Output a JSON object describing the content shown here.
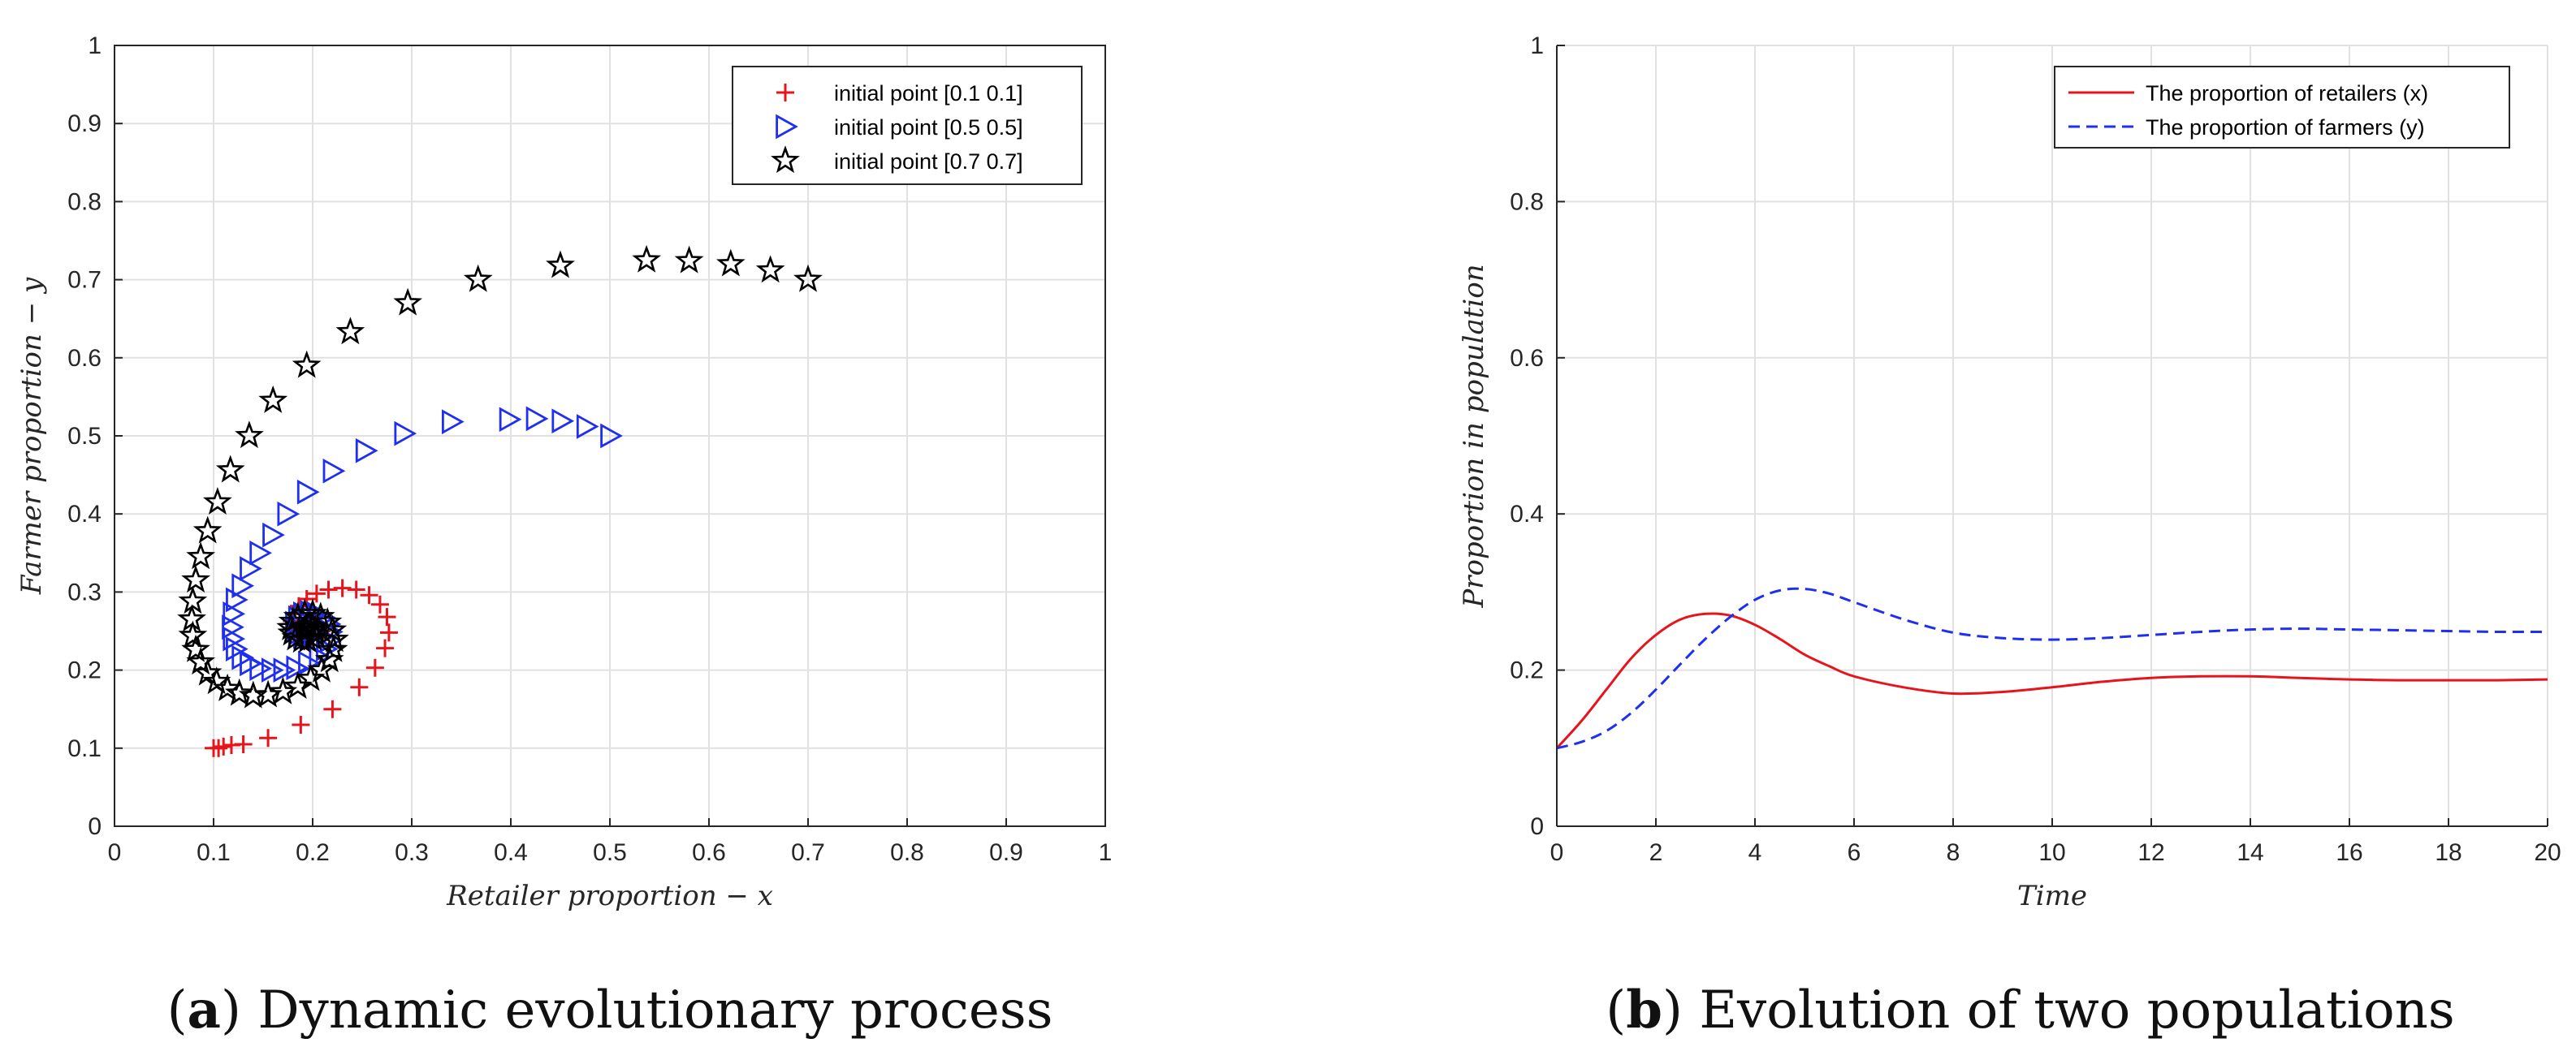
{
  "chart_data": [
    {
      "type": "scatter",
      "panel": "a",
      "caption": {
        "letter": "a",
        "text": "Dynamic evolutionary process"
      },
      "xlabel": "Retailer proportion − x",
      "ylabel": "Farmer proportion − y",
      "xlim": [
        0,
        1
      ],
      "ylim": [
        0,
        1
      ],
      "xticks": [
        "0",
        "0.1",
        "0.2",
        "0.3",
        "0.4",
        "0.5",
        "0.6",
        "0.7",
        "0.8",
        "0.9",
        "1"
      ],
      "yticks": [
        "0",
        "0.1",
        "0.2",
        "0.3",
        "0.4",
        "0.5",
        "0.6",
        "0.7",
        "0.8",
        "0.9",
        "1"
      ],
      "grid": true,
      "legend_position": "top-right",
      "series": [
        {
          "name": "initial point [0.1 0.1]",
          "marker": "plus",
          "color": "#e8141c",
          "points": [
            [
              0.1,
              0.1
            ],
            [
              0.105,
              0.1
            ],
            [
              0.11,
              0.102
            ],
            [
              0.118,
              0.104
            ],
            [
              0.13,
              0.105
            ],
            [
              0.155,
              0.113
            ],
            [
              0.188,
              0.13
            ],
            [
              0.22,
              0.15
            ],
            [
              0.247,
              0.178
            ],
            [
              0.263,
              0.203
            ],
            [
              0.273,
              0.228
            ],
            [
              0.277,
              0.248
            ],
            [
              0.275,
              0.268
            ],
            [
              0.268,
              0.284
            ],
            [
              0.257,
              0.296
            ],
            [
              0.244,
              0.303
            ],
            [
              0.23,
              0.305
            ],
            [
              0.216,
              0.303
            ],
            [
              0.204,
              0.298
            ],
            [
              0.194,
              0.291
            ],
            [
              0.186,
              0.282
            ],
            [
              0.181,
              0.272
            ],
            [
              0.179,
              0.263
            ],
            [
              0.18,
              0.254
            ],
            [
              0.183,
              0.247
            ],
            [
              0.188,
              0.242
            ],
            [
              0.194,
              0.239
            ],
            [
              0.2,
              0.239
            ],
            [
              0.205,
              0.241
            ],
            [
              0.208,
              0.245
            ],
            [
              0.209,
              0.25
            ],
            [
              0.207,
              0.255
            ],
            [
              0.203,
              0.258
            ],
            [
              0.198,
              0.259
            ],
            [
              0.194,
              0.257
            ],
            [
              0.192,
              0.253
            ],
            [
              0.193,
              0.25
            ],
            [
              0.196,
              0.248
            ],
            [
              0.199,
              0.249
            ]
          ]
        },
        {
          "name": "initial point [0.5 0.5]",
          "marker": "triangle-right",
          "color": "#1f2ff0",
          "points": [
            [
              0.5,
              0.5
            ],
            [
              0.476,
              0.512
            ],
            [
              0.451,
              0.519
            ],
            [
              0.425,
              0.522
            ],
            [
              0.398,
              0.521
            ],
            [
              0.34,
              0.518
            ],
            [
              0.292,
              0.503
            ],
            [
              0.253,
              0.481
            ],
            [
              0.22,
              0.455
            ],
            [
              0.194,
              0.428
            ],
            [
              0.174,
              0.4
            ],
            [
              0.159,
              0.373
            ],
            [
              0.146,
              0.35
            ],
            [
              0.136,
              0.33
            ],
            [
              0.128,
              0.308
            ],
            [
              0.122,
              0.29
            ],
            [
              0.119,
              0.272
            ],
            [
              0.118,
              0.255
            ],
            [
              0.119,
              0.24
            ],
            [
              0.122,
              0.227
            ],
            [
              0.128,
              0.216
            ],
            [
              0.136,
              0.208
            ],
            [
              0.146,
              0.202
            ],
            [
              0.158,
              0.2
            ],
            [
              0.17,
              0.2
            ],
            [
              0.183,
              0.203
            ],
            [
              0.195,
              0.209
            ],
            [
              0.206,
              0.217
            ],
            [
              0.213,
              0.227
            ],
            [
              0.217,
              0.238
            ],
            [
              0.218,
              0.249
            ],
            [
              0.216,
              0.259
            ],
            [
              0.211,
              0.267
            ],
            [
              0.204,
              0.272
            ],
            [
              0.197,
              0.274
            ],
            [
              0.19,
              0.272
            ],
            [
              0.185,
              0.267
            ],
            [
              0.182,
              0.26
            ],
            [
              0.182,
              0.253
            ],
            [
              0.185,
              0.247
            ],
            [
              0.19,
              0.243
            ],
            [
              0.196,
              0.243
            ],
            [
              0.2,
              0.246
            ],
            [
              0.202,
              0.25
            ]
          ]
        },
        {
          "name": "initial point [0.7 0.7]",
          "marker": "pentagram",
          "color": "#000000",
          "points": [
            [
              0.7,
              0.7
            ],
            [
              0.662,
              0.712
            ],
            [
              0.622,
              0.72
            ],
            [
              0.58,
              0.724
            ],
            [
              0.537,
              0.725
            ],
            [
              0.45,
              0.718
            ],
            [
              0.367,
              0.7
            ],
            [
              0.296,
              0.67
            ],
            [
              0.238,
              0.633
            ],
            [
              0.194,
              0.59
            ],
            [
              0.16,
              0.545
            ],
            [
              0.136,
              0.5
            ],
            [
              0.117,
              0.456
            ],
            [
              0.104,
              0.415
            ],
            [
              0.094,
              0.378
            ],
            [
              0.087,
              0.345
            ],
            [
              0.082,
              0.315
            ],
            [
              0.079,
              0.288
            ],
            [
              0.078,
              0.265
            ],
            [
              0.079,
              0.244
            ],
            [
              0.082,
              0.226
            ],
            [
              0.087,
              0.21
            ],
            [
              0.094,
              0.196
            ],
            [
              0.103,
              0.185
            ],
            [
              0.114,
              0.176
            ],
            [
              0.126,
              0.17
            ],
            [
              0.14,
              0.167
            ],
            [
              0.155,
              0.168
            ],
            [
              0.17,
              0.172
            ],
            [
              0.185,
              0.179
            ],
            [
              0.198,
              0.189
            ],
            [
              0.209,
              0.2
            ],
            [
              0.217,
              0.213
            ],
            [
              0.221,
              0.226
            ],
            [
              0.222,
              0.239
            ],
            [
              0.22,
              0.251
            ],
            [
              0.215,
              0.261
            ],
            [
              0.208,
              0.268
            ],
            [
              0.2,
              0.272
            ],
            [
              0.192,
              0.272
            ],
            [
              0.185,
              0.268
            ],
            [
              0.18,
              0.262
            ],
            [
              0.178,
              0.254
            ],
            [
              0.179,
              0.247
            ],
            [
              0.183,
              0.241
            ],
            [
              0.189,
              0.238
            ],
            [
              0.195,
              0.238
            ],
            [
              0.2,
              0.241
            ],
            [
              0.203,
              0.246
            ],
            [
              0.203,
              0.251
            ],
            [
              0.2,
              0.255
            ],
            [
              0.196,
              0.256
            ],
            [
              0.193,
              0.253
            ],
            [
              0.193,
              0.249
            ]
          ]
        }
      ]
    },
    {
      "type": "line",
      "panel": "b",
      "caption": {
        "letter": "b",
        "text": "Evolution of two populations"
      },
      "xlabel": "Time",
      "ylabel": "Proportion in population",
      "xlim": [
        0,
        20
      ],
      "ylim": [
        0,
        1
      ],
      "xticks": [
        "0",
        "2",
        "4",
        "6",
        "8",
        "10",
        "12",
        "14",
        "16",
        "18",
        "20"
      ],
      "yticks": [
        "0",
        "0.2",
        "0.4",
        "0.6",
        "0.8",
        "1"
      ],
      "grid": true,
      "legend_position": "top-right",
      "series": [
        {
          "name": "The proportion of retailers (x)",
          "style": "solid",
          "color": "#e8141c",
          "x": [
            0,
            0.5,
            1,
            1.5,
            2,
            2.5,
            3,
            3.5,
            4,
            4.5,
            5,
            5.5,
            6,
            7,
            8,
            9,
            10,
            11,
            12,
            13,
            14,
            15,
            16,
            17,
            18,
            19,
            20
          ],
          "y": [
            0.1,
            0.135,
            0.175,
            0.215,
            0.245,
            0.265,
            0.272,
            0.27,
            0.258,
            0.24,
            0.22,
            0.205,
            0.192,
            0.178,
            0.17,
            0.172,
            0.178,
            0.185,
            0.19,
            0.192,
            0.192,
            0.19,
            0.188,
            0.187,
            0.187,
            0.187,
            0.188
          ]
        },
        {
          "name": "The proportion of farmers (y)",
          "style": "dashed",
          "color": "#1f2ff0",
          "x": [
            0,
            0.5,
            1,
            1.5,
            2,
            2.5,
            3,
            3.5,
            4,
            4.5,
            5,
            5.5,
            6,
            7,
            8,
            9,
            10,
            11,
            12,
            13,
            14,
            15,
            16,
            17,
            18,
            19,
            20
          ],
          "y": [
            0.1,
            0.108,
            0.122,
            0.145,
            0.175,
            0.208,
            0.24,
            0.268,
            0.29,
            0.302,
            0.304,
            0.298,
            0.287,
            0.265,
            0.248,
            0.241,
            0.239,
            0.241,
            0.245,
            0.249,
            0.252,
            0.253,
            0.252,
            0.251,
            0.25,
            0.249,
            0.249
          ]
        }
      ]
    }
  ]
}
